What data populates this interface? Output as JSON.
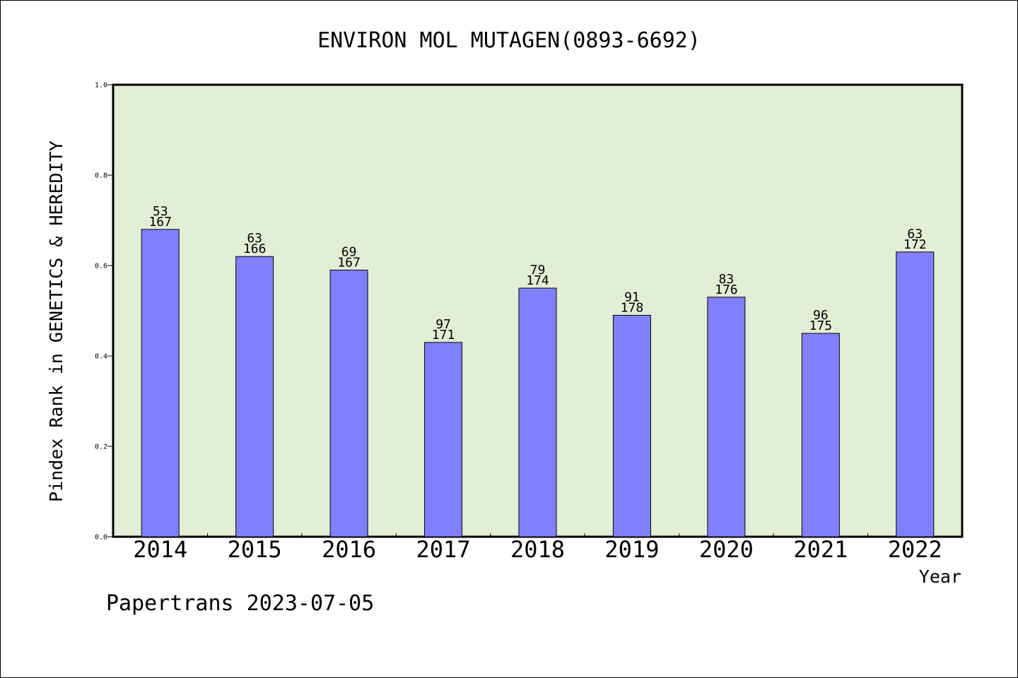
{
  "chart_data": {
    "type": "bar",
    "title": "ENVIRON MOL MUTAGEN(0893-6692)",
    "ylabel": "Pindex Rank in GENETICS & HEREDITY",
    "xlabel": "Year",
    "categories": [
      "2014",
      "2015",
      "2016",
      "2017",
      "2018",
      "2019",
      "2020",
      "2021",
      "2022"
    ],
    "values": [
      0.68,
      0.62,
      0.59,
      0.43,
      0.55,
      0.49,
      0.53,
      0.45,
      0.63
    ],
    "rank_labels": [
      "53",
      "63",
      "69",
      "97",
      "79",
      "91",
      "83",
      "96",
      "63"
    ],
    "total_labels": [
      "167",
      "166",
      "167",
      "171",
      "174",
      "178",
      "176",
      "175",
      "172"
    ],
    "ylim": [
      0,
      1.0
    ],
    "yticks": [
      "0.0",
      "0.2",
      "0.4",
      "0.6",
      "0.8",
      "1.0"
    ],
    "grid": false,
    "colors": {
      "bar": "#8080ff",
      "plot_background": "#e2efd5"
    }
  },
  "footer": "Papertrans 2023-07-05"
}
